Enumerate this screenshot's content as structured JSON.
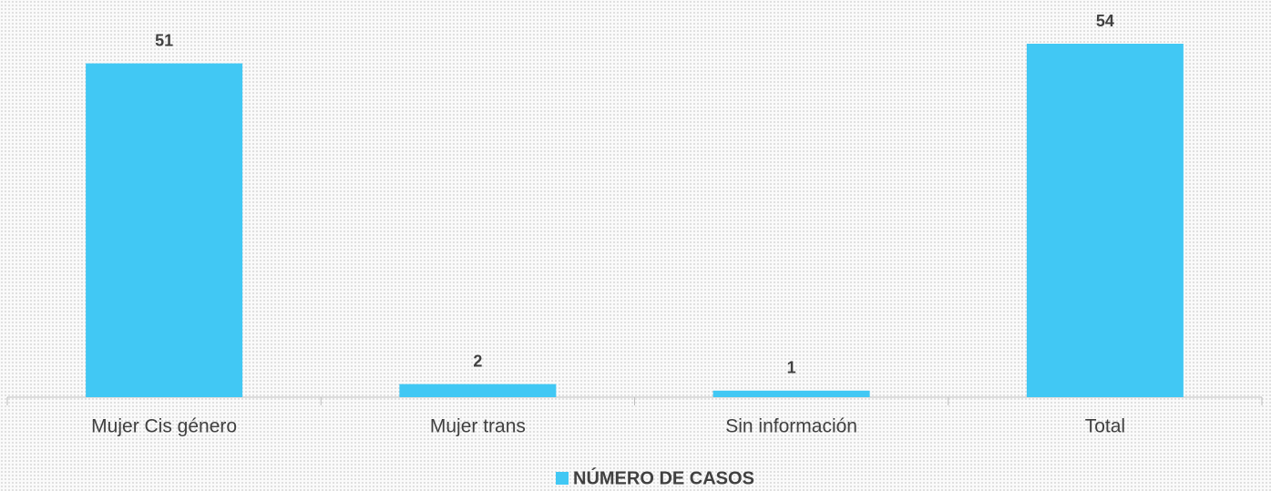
{
  "chart_data": {
    "type": "bar",
    "categories": [
      "Mujer Cis género",
      "Mujer trans",
      "Sin información",
      "Total"
    ],
    "series": [
      {
        "name": "NÚMERO DE CASOS",
        "color": "#41c8f4",
        "values": [
          51,
          2,
          1,
          54
        ]
      }
    ],
    "legend": "bottom",
    "grid": false
  }
}
